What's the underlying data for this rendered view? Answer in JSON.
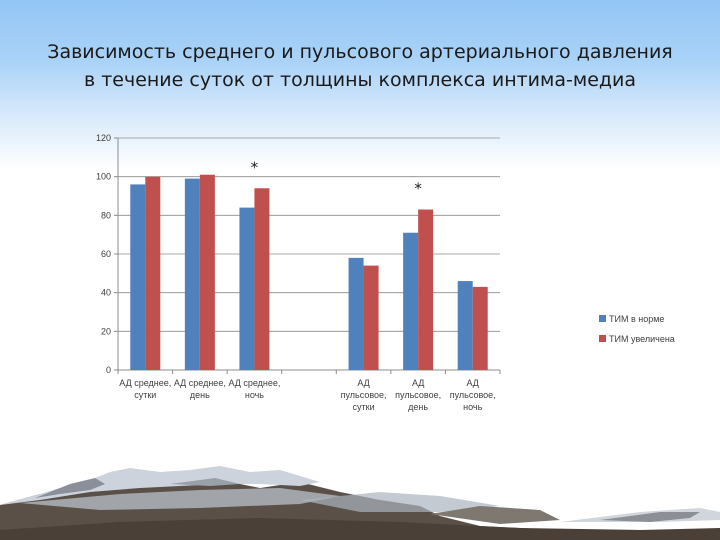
{
  "slide": {
    "title_line1": "Зависимость среднего  и пульсового артериального давления",
    "title_line2": "в течение суток  от толщины комплекса интима-медиа"
  },
  "chart_data": {
    "type": "bar",
    "categories": [
      [
        "АД среднее,",
        "сутки"
      ],
      [
        "АД среднее,",
        "день"
      ],
      [
        "АД среднее,",
        "ночь"
      ],
      [
        "",
        ""
      ],
      [
        "АД",
        "пульсовое,",
        "сутки"
      ],
      [
        "АД",
        "пульсовое,",
        "день"
      ],
      [
        "АД",
        "пульсовое,",
        "ночь"
      ]
    ],
    "series": [
      {
        "name": "ТИМ в норме",
        "color": "#4f81bd",
        "values": [
          96,
          99,
          84,
          null,
          58,
          71,
          46
        ]
      },
      {
        "name": "ТИМ увеличена",
        "color": "#c0504d",
        "values": [
          100,
          101,
          94,
          null,
          54,
          83,
          43
        ]
      }
    ],
    "annotations": [
      {
        "text": "*",
        "category_index": 2
      },
      {
        "text": "*",
        "category_index": 5
      }
    ],
    "ylim": [
      0,
      120
    ],
    "yticks": [
      0,
      20,
      40,
      60,
      80,
      100,
      120
    ],
    "grid": true,
    "legend": "right",
    "title": "",
    "xlabel": "",
    "ylabel": ""
  }
}
